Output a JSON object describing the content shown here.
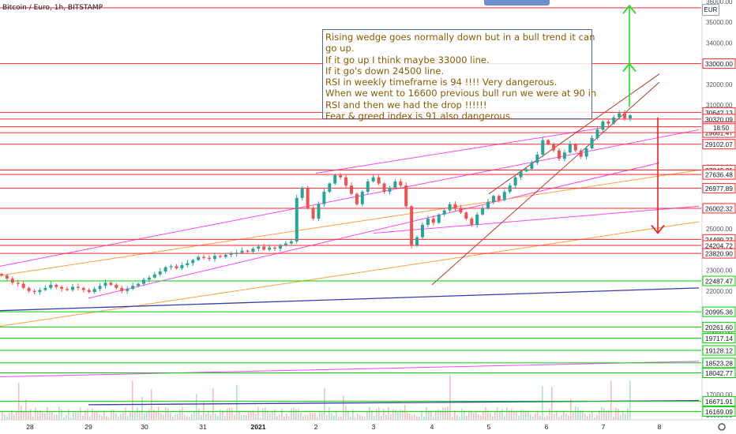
{
  "header": {
    "symbol_line": "Bitcoin / Euro, 1h, BITSTAMP"
  },
  "currency_button": "EUR",
  "note": {
    "lines": [
      "Rising wedge goes normally down but in a bull trend it can",
      "go up.",
      "If it go up I think maybe 33000 line.",
      "If it go's down 24500 line.",
      "RSI in weekly timeframe is 94 !!!!  Very dangerous.",
      "When we went to 16600 previous bull run we were at 90 in",
      "RSI and then we had the drop !!!!!!",
      "Fear & greed index is 91 also dangerous."
    ]
  },
  "chart_data": {
    "type": "candlestick",
    "title": "Bitcoin / Euro, 1h, BITSTAMP",
    "xlabel": "",
    "ylabel": "",
    "x_ticks": [
      "28",
      "29",
      "30",
      "31",
      "2021",
      "2",
      "3",
      "4",
      "5",
      "6",
      "7",
      "8"
    ],
    "y_ticks": [
      36000,
      35000,
      34000,
      33000,
      32000,
      31000,
      30000,
      29000,
      28000,
      27000,
      26000,
      25000,
      24000,
      23000,
      22000,
      21000,
      20000,
      19000,
      18000,
      17000,
      16000
    ],
    "ylim": [
      16000,
      36000
    ],
    "price_axis": "right",
    "grid": false,
    "last_price": 30320.09,
    "countdown_label": "18:50",
    "colors": {
      "up": "#26a69a",
      "down": "#ef5350",
      "red_level": "#ff2a2a",
      "green_level": "#00d000",
      "arrow_up": "#22dd22",
      "arrow_down": "#ee2222",
      "magenta": "#ff44ff",
      "orange": "#ffa040",
      "navy": "#3b3ba8",
      "brown": "#b03a2e",
      "teal": "#26a69a"
    },
    "horizontal_levels": [
      {
        "price": 35700,
        "label": "",
        "color": "red"
      },
      {
        "price": 33000,
        "label": "33000.00",
        "color": "red"
      },
      {
        "price": 30642.13,
        "label": "30642.13",
        "color": "red"
      },
      {
        "price": 30320.09,
        "label": "30320.09",
        "color": "red"
      },
      {
        "price": 29947.16,
        "label": "29947.16",
        "color": "red"
      },
      {
        "price": 29661.47,
        "label": "29661.47",
        "color": "red"
      },
      {
        "price": 29102.07,
        "label": "29102.07",
        "color": "red"
      },
      {
        "price": 27849.31,
        "label": "27849.31",
        "color": "red"
      },
      {
        "price": 27636.48,
        "label": "27636.48",
        "color": "red"
      },
      {
        "price": 26977.89,
        "label": "26977.89",
        "color": "red"
      },
      {
        "price": 26002.32,
        "label": "26002.32",
        "color": "red"
      },
      {
        "price": 24499.27,
        "label": "24499.27",
        "color": "red"
      },
      {
        "price": 24204.72,
        "label": "24204.72",
        "color": "red"
      },
      {
        "price": 23820.9,
        "label": "23820.90",
        "color": "red"
      },
      {
        "price": 22487.47,
        "label": "22487.47",
        "color": "green"
      },
      {
        "price": 20995.36,
        "label": "20995.36",
        "color": "green"
      },
      {
        "price": 20261.6,
        "label": "20261.60",
        "color": "green"
      },
      {
        "price": 19717.14,
        "label": "19717.14",
        "color": "green"
      },
      {
        "price": 19128.12,
        "label": "19128.12",
        "color": "green"
      },
      {
        "price": 18523.28,
        "label": "18523.28",
        "color": "green"
      },
      {
        "price": 18042.77,
        "label": "18042.77",
        "color": "green"
      },
      {
        "price": 16671.91,
        "label": "16671.91",
        "color": "green"
      },
      {
        "price": 16169.09,
        "label": "16169.09",
        "color": "green"
      }
    ],
    "candles_close": [
      22750,
      22600,
      22400,
      22350,
      22150,
      22000,
      21950,
      22050,
      22150,
      22300,
      22200,
      22100,
      22050,
      22200,
      22150,
      22050,
      21950,
      22100,
      22250,
      22400,
      22300,
      22150,
      22000,
      22100,
      22250,
      22350,
      22550,
      22650,
      22800,
      22950,
      23150,
      23200,
      23100,
      23250,
      23350,
      23500,
      23650,
      23600,
      23550,
      23700,
      23650,
      23750,
      23800,
      23850,
      23950,
      23900,
      24050,
      24150,
      24000,
      24100,
      24050,
      24200,
      24300,
      24400,
      26500,
      27000,
      26000,
      25500,
      26200,
      26800,
      27200,
      27600,
      27500,
      27100,
      26700,
      26200,
      26800,
      27300,
      27500,
      27200,
      26800,
      27000,
      27300,
      27100,
      26100,
      24200,
      24600,
      25200,
      25500,
      25300,
      25700,
      25900,
      26200,
      26000,
      25800,
      25500,
      25200,
      25700,
      26000,
      26300,
      26600,
      26400,
      26800,
      27100,
      27500,
      27800,
      27900,
      28200,
      28600,
      29300,
      29100,
      28800,
      28400,
      28700,
      29100,
      28800,
      28500,
      28900,
      29400,
      29800,
      30200,
      30100,
      30400,
      30600,
      30350,
      30500
    ],
    "trendlines": [
      {
        "color": "magenta",
        "from": {
          "day": "27",
          "price": 23200
        },
        "to": {
          "day": "8+",
          "price": 29800
        }
      },
      {
        "color": "magenta",
        "from": {
          "day": "2",
          "price": 27700
        },
        "to": {
          "day": "7",
          "price": 29900
        }
      },
      {
        "color": "magenta",
        "from": {
          "day": "29",
          "price": 21650
        },
        "to": {
          "day": "8",
          "price": 28200
        }
      },
      {
        "color": "magenta",
        "from": {
          "day": "3",
          "price": 24800
        },
        "to": {
          "day": "8+",
          "price": 26100
        }
      },
      {
        "color": "orange",
        "from": {
          "day": "27",
          "price": 22750
        },
        "to": {
          "day": "8+",
          "price": 27850
        }
      },
      {
        "color": "orange",
        "from": {
          "day": "27",
          "price": 20300
        },
        "to": {
          "day": "8+",
          "price": 25350
        }
      },
      {
        "color": "navy",
        "from": {
          "day": "27",
          "price": 21050
        },
        "to": {
          "day": "8+",
          "price": 22150
        }
      },
      {
        "color": "navy",
        "from": {
          "day": "29",
          "price": 16500
        },
        "to": {
          "day": "8+",
          "price": 16700
        }
      },
      {
        "color": "magenta",
        "from": {
          "day": "27",
          "price": 17850
        },
        "to": {
          "day": "8+",
          "price": 18600
        }
      },
      {
        "color": "brown",
        "from": {
          "day": "5",
          "price": 26700
        },
        "to": {
          "day": "8",
          "price": 32500
        }
      },
      {
        "color": "brown",
        "from": {
          "day": "4",
          "price": 22300
        },
        "to": {
          "day": "8",
          "price": 32100
        }
      }
    ],
    "arrows": [
      {
        "direction": "up",
        "color": "green",
        "from_price": 33000,
        "to_price": 35800
      },
      {
        "direction": "up",
        "color": "green",
        "from_price": 30900,
        "to_price": 33000
      },
      {
        "direction": "down",
        "color": "red",
        "from_price": 30400,
        "to_price": 24800
      }
    ]
  }
}
